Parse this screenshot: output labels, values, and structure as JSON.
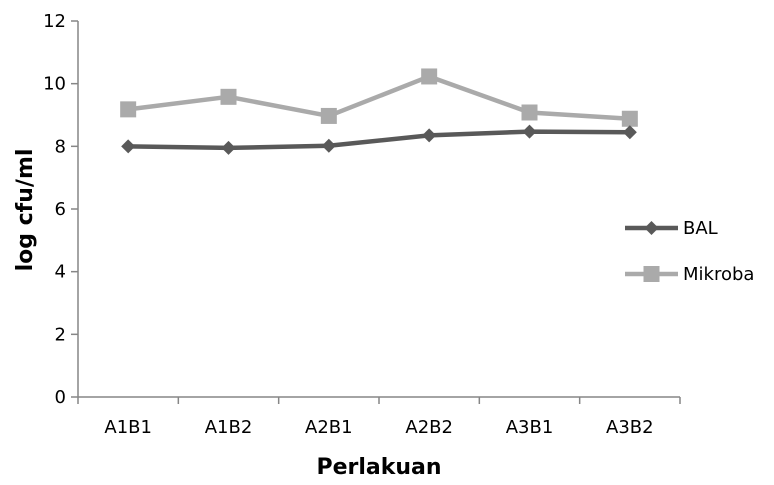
{
  "chart_data": {
    "type": "line",
    "title": "",
    "xlabel": "Perlakuan",
    "ylabel": "log cfu/ml",
    "categories": [
      "A1B1",
      "A1B2",
      "A2B1",
      "A2B2",
      "A3B1",
      "A3B2"
    ],
    "ylim": [
      0,
      12
    ],
    "yticks": [
      0,
      2,
      4,
      6,
      8,
      10,
      12
    ],
    "grid": false,
    "legend_position": "right",
    "series": [
      {
        "name": "BAL",
        "values": [
          8.0,
          7.95,
          8.02,
          8.35,
          8.47,
          8.45
        ],
        "color": "#595959",
        "marker": "diamond"
      },
      {
        "name": "Mikroba",
        "values": [
          9.18,
          9.58,
          8.97,
          10.23,
          9.08,
          8.88
        ],
        "color": "#aaaaaa",
        "marker": "square"
      }
    ]
  }
}
